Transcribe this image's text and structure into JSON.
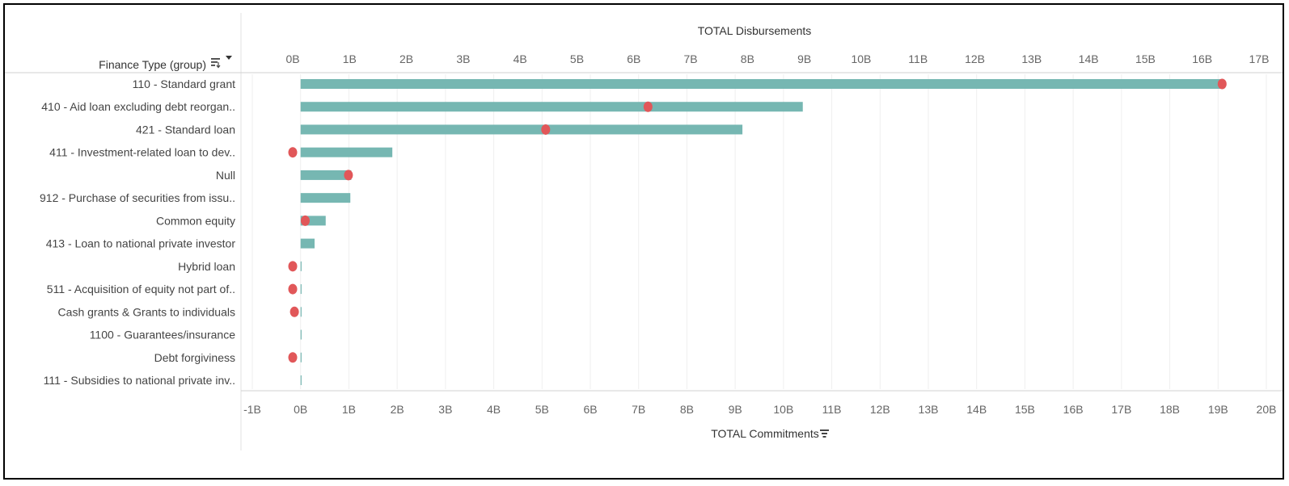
{
  "chart_data": {
    "type": "bar",
    "row_header": "Finance Type (group)",
    "categories": [
      "110 - Standard grant",
      "410 - Aid loan excluding debt reorgan..",
      "421 - Standard loan",
      "411 - Investment-related loan to dev..",
      "Null",
      "912 - Purchase of securities from issu..",
      "Common equity",
      "413 - Loan to national private investor",
      "Hybrid loan",
      "511 - Acquisition of equity not part of..",
      "Cash grants & Grants to individuals",
      "1100 - Guarantees/insurance",
      "Debt forgiviness",
      "111 - Subsidies to national private inv.."
    ],
    "series": [
      {
        "name": "TOTAL Commitments",
        "mark": "bar",
        "color": "#76b7b2",
        "values": [
          19.1,
          10.4,
          9.15,
          1.9,
          1.05,
          1.03,
          0.52,
          0.29,
          0.0,
          0.0,
          0.0,
          0.02,
          0.0,
          0.02
        ]
      },
      {
        "name": "TOTAL Disbursements",
        "mark": "dot",
        "color": "#e15759",
        "values": [
          16.35,
          6.25,
          4.45,
          0.0,
          0.98,
          null,
          0.22,
          null,
          0.0,
          0.0,
          0.03,
          null,
          0.0,
          null
        ]
      }
    ],
    "top_axis": {
      "title": "TOTAL Disbursements",
      "range": [
        0,
        17
      ],
      "ticks": [
        0,
        1,
        2,
        3,
        4,
        5,
        6,
        7,
        8,
        9,
        10,
        11,
        12,
        13,
        14,
        15,
        16,
        17
      ],
      "tick_labels": [
        "0B",
        "1B",
        "2B",
        "3B",
        "4B",
        "5B",
        "6B",
        "7B",
        "8B",
        "9B",
        "10B",
        "11B",
        "12B",
        "13B",
        "14B",
        "15B",
        "16B",
        "17B"
      ]
    },
    "bottom_axis": {
      "title": "TOTAL Commitments",
      "range": [
        -1,
        20
      ],
      "ticks": [
        -1,
        0,
        1,
        2,
        3,
        4,
        5,
        6,
        7,
        8,
        9,
        10,
        11,
        12,
        13,
        14,
        15,
        16,
        17,
        18,
        19,
        20
      ],
      "tick_labels": [
        "-1B",
        "0B",
        "1B",
        "2B",
        "3B",
        "4B",
        "5B",
        "6B",
        "7B",
        "8B",
        "9B",
        "10B",
        "11B",
        "12B",
        "13B",
        "14B",
        "15B",
        "16B",
        "17B",
        "18B",
        "19B",
        "20B"
      ]
    },
    "grid": true
  }
}
